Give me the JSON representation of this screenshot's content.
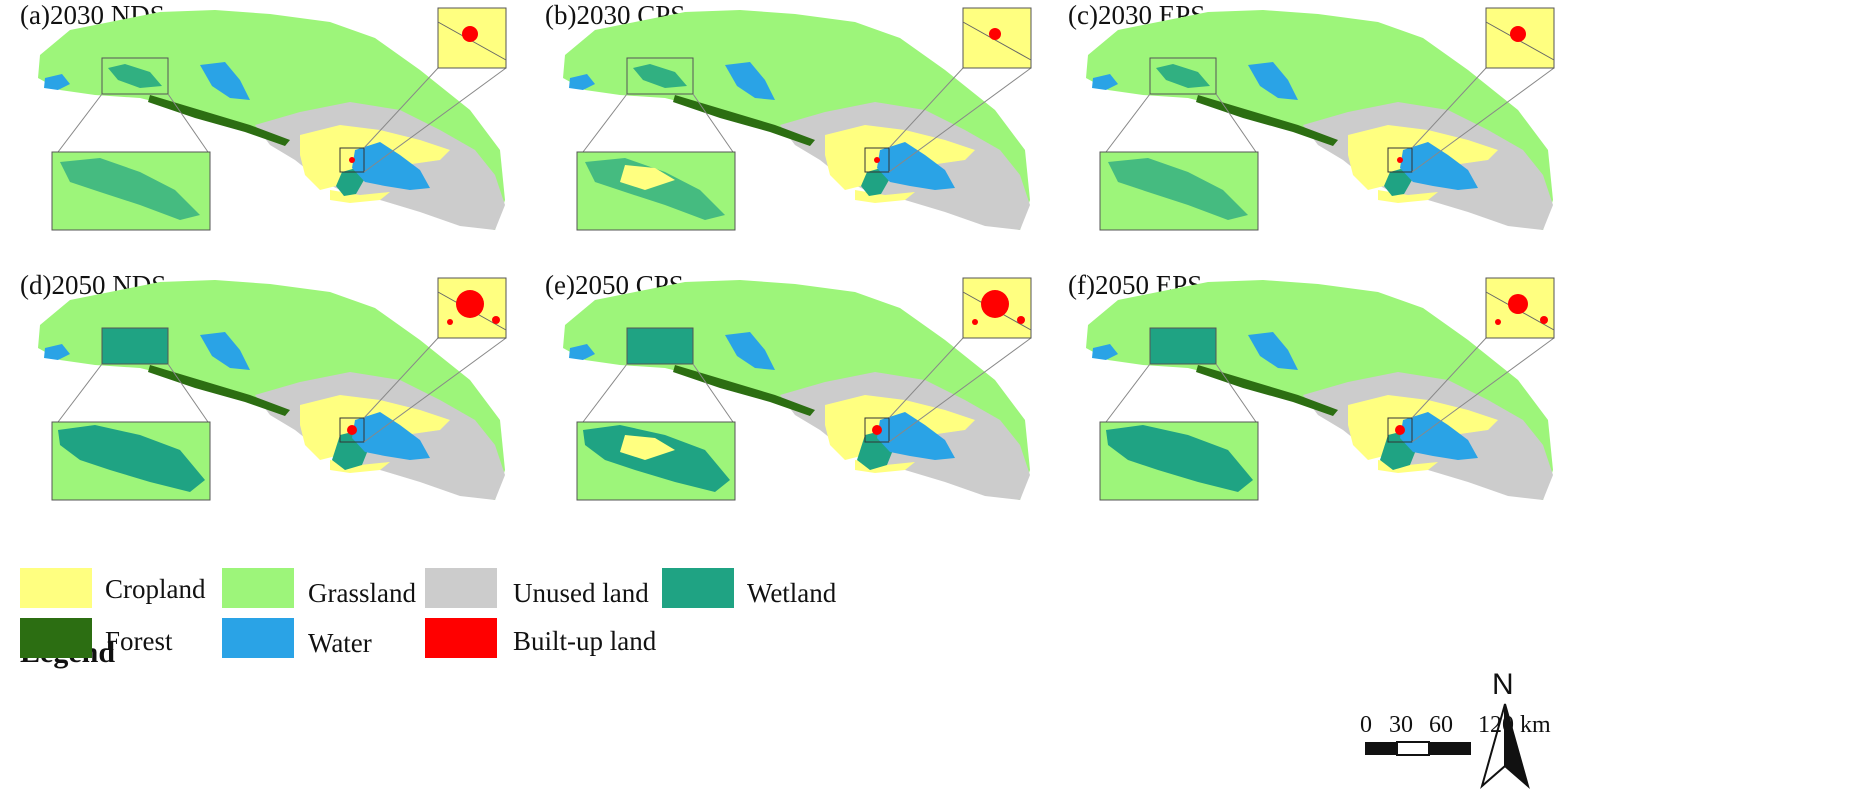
{
  "colors": {
    "cropland": "#ffff80",
    "forest": "#2c6e12",
    "grassland": "#9df57a",
    "water": "#2aa3e6",
    "unused": "#cccccc",
    "builtup": "#ff0000",
    "wetland": "#1fa383"
  },
  "panels": [
    {
      "label": "(a)2030 NDS",
      "scenario": "NDS",
      "year": 2030
    },
    {
      "label": "(b)2030 CPS",
      "scenario": "CPS",
      "year": 2030
    },
    {
      "label": "(c)2030 EPS",
      "scenario": "EPS",
      "year": 2030
    },
    {
      "label": "(d)2050 NDS",
      "scenario": "NDS",
      "year": 2050
    },
    {
      "label": "(e)2050 CPS",
      "scenario": "CPS",
      "year": 2050
    },
    {
      "label": "(f)2050 EPS",
      "scenario": "EPS",
      "year": 2050
    }
  ],
  "legend": {
    "title": "Legend",
    "items": [
      {
        "key": "cropland",
        "label": "Cropland"
      },
      {
        "key": "grassland",
        "label": "Grassland"
      },
      {
        "key": "unused",
        "label": "Unused land"
      },
      {
        "key": "wetland",
        "label": "Wetland"
      },
      {
        "key": "forest",
        "label": "Forest"
      },
      {
        "key": "water",
        "label": "Water"
      },
      {
        "key": "builtup",
        "label": "Built-up land"
      }
    ]
  },
  "north_arrow": {
    "label": "N"
  },
  "scale": {
    "ticks": [
      "0",
      "30",
      "60",
      "120 km"
    ],
    "unit": "km"
  }
}
